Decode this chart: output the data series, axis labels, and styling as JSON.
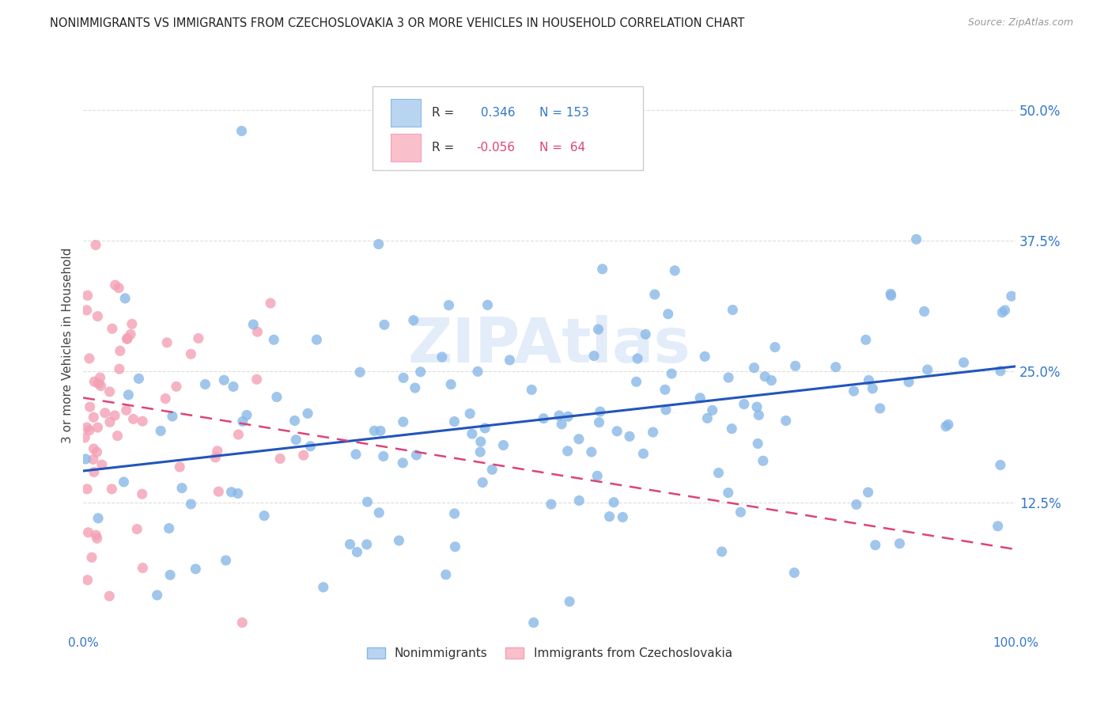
{
  "title": "NONIMMIGRANTS VS IMMIGRANTS FROM CZECHOSLOVAKIA 3 OR MORE VEHICLES IN HOUSEHOLD CORRELATION CHART",
  "source": "Source: ZipAtlas.com",
  "ylabel": "3 or more Vehicles in Household",
  "yticks": [
    "12.5%",
    "25.0%",
    "37.5%",
    "50.0%"
  ],
  "ytick_values": [
    0.125,
    0.25,
    0.375,
    0.5
  ],
  "xrange": [
    0.0,
    1.0
  ],
  "yrange": [
    0.0,
    0.55
  ],
  "blue_R": 0.346,
  "blue_N": 153,
  "pink_R": -0.056,
  "pink_N": 64,
  "blue_color": "#89b8e8",
  "pink_color": "#f4a0b5",
  "blue_line_color": "#2255bb",
  "pink_line_color": "#dd4477",
  "legend_blue_label": "Nonimmigrants",
  "legend_pink_label": "Immigrants from Czechoslovakia",
  "watermark": "ZIPAtlas",
  "background_color": "#ffffff",
  "grid_color": "#dddddd",
  "blue_line_start_y": 0.155,
  "blue_line_end_y": 0.255,
  "pink_line_start_y": 0.225,
  "pink_line_end_y": 0.08
}
